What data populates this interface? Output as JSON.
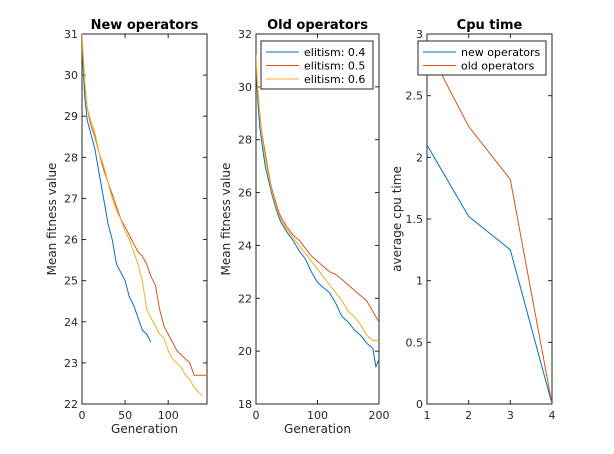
{
  "chart_data": [
    {
      "type": "line",
      "title": "New operators",
      "xlabel": "Generation",
      "ylabel": "Mean fitness value",
      "xlim": [
        0,
        145
      ],
      "ylim": [
        22,
        31
      ],
      "xticks": [
        0,
        50,
        100
      ],
      "yticks": [
        22,
        23,
        24,
        25,
        26,
        27,
        28,
        29,
        30,
        31
      ],
      "legend": null,
      "series": [
        {
          "color": "#0072BD",
          "x": [
            0,
            3,
            6,
            10,
            15,
            20,
            25,
            30,
            35,
            40,
            45,
            50,
            55,
            60,
            65,
            70,
            75,
            80
          ],
          "y": [
            30.8,
            29.5,
            28.9,
            28.6,
            28.2,
            27.6,
            27.0,
            26.4,
            26.0,
            25.4,
            25.2,
            25.0,
            24.6,
            24.4,
            24.1,
            23.8,
            23.7,
            23.5
          ]
        },
        {
          "color": "#D95319",
          "x": [
            0,
            3,
            6,
            10,
            15,
            20,
            25,
            30,
            35,
            40,
            45,
            50,
            55,
            60,
            65,
            70,
            75,
            80,
            85,
            90,
            95,
            100,
            105,
            110,
            115,
            120,
            125,
            130,
            135,
            140,
            145
          ],
          "y": [
            30.9,
            29.8,
            29.2,
            28.8,
            28.5,
            28.1,
            27.7,
            27.4,
            27.1,
            26.8,
            26.5,
            26.3,
            26.1,
            25.9,
            25.7,
            25.6,
            25.4,
            25.1,
            24.9,
            24.3,
            23.9,
            23.7,
            23.5,
            23.3,
            23.2,
            23.1,
            23.0,
            22.7,
            22.7,
            22.7,
            22.7
          ]
        },
        {
          "color": "#EDB120",
          "x": [
            0,
            3,
            6,
            10,
            15,
            20,
            25,
            30,
            35,
            40,
            45,
            50,
            55,
            60,
            65,
            70,
            75,
            80,
            85,
            90,
            95,
            100,
            105,
            110,
            115,
            120,
            125,
            130,
            135,
            140
          ],
          "y": [
            31.0,
            29.9,
            29.2,
            28.9,
            28.6,
            28.1,
            27.8,
            27.4,
            27.0,
            26.7,
            26.5,
            26.2,
            26.0,
            25.7,
            25.4,
            25.0,
            24.3,
            24.1,
            23.9,
            23.7,
            23.6,
            23.3,
            23.1,
            23.0,
            22.9,
            22.7,
            22.6,
            22.4,
            22.3,
            22.2
          ]
        }
      ]
    },
    {
      "type": "line",
      "title": "Old operators",
      "xlabel": "Generation",
      "ylabel": "Mean fitness value",
      "xlim": [
        0,
        200
      ],
      "ylim": [
        18,
        32
      ],
      "xticks": [
        0,
        100,
        200
      ],
      "yticks": [
        18,
        20,
        22,
        24,
        26,
        28,
        30,
        32
      ],
      "legend": "top-right",
      "series": [
        {
          "name": "elitism: 0.4",
          "color": "#0072BD",
          "x": [
            0,
            3,
            6,
            10,
            15,
            20,
            25,
            30,
            35,
            40,
            45,
            50,
            60,
            70,
            80,
            90,
            100,
            110,
            120,
            130,
            140,
            150,
            160,
            170,
            180,
            190,
            195,
            200
          ],
          "y": [
            30.8,
            29.5,
            28.5,
            27.8,
            27.0,
            26.5,
            26.0,
            25.6,
            25.2,
            24.9,
            24.7,
            24.5,
            24.2,
            23.8,
            23.5,
            23.0,
            22.6,
            22.4,
            22.2,
            21.8,
            21.3,
            21.1,
            20.8,
            20.6,
            20.3,
            20.1,
            19.4,
            19.7
          ]
        },
        {
          "name": "elitism: 0.5",
          "color": "#D95319",
          "x": [
            0,
            3,
            6,
            10,
            15,
            20,
            25,
            30,
            35,
            40,
            45,
            50,
            60,
            70,
            80,
            90,
            100,
            110,
            120,
            130,
            140,
            150,
            160,
            170,
            180,
            190,
            200
          ],
          "y": [
            31.0,
            29.8,
            29.0,
            28.2,
            27.5,
            26.8,
            26.2,
            25.8,
            25.4,
            25.1,
            24.9,
            24.7,
            24.4,
            24.2,
            23.9,
            23.6,
            23.4,
            23.2,
            23.0,
            22.9,
            22.7,
            22.5,
            22.3,
            22.1,
            21.9,
            21.5,
            21.1
          ]
        },
        {
          "name": "elitism: 0.6",
          "color": "#EDB120",
          "x": [
            0,
            3,
            6,
            10,
            15,
            20,
            25,
            30,
            35,
            40,
            45,
            50,
            60,
            70,
            80,
            90,
            100,
            110,
            120,
            130,
            140,
            150,
            160,
            170,
            180,
            190,
            200
          ],
          "y": [
            31.2,
            29.9,
            29.0,
            28.1,
            27.3,
            26.7,
            26.1,
            25.7,
            25.3,
            25.0,
            24.8,
            24.6,
            24.3,
            24.0,
            23.7,
            23.4,
            23.1,
            22.8,
            22.5,
            22.2,
            21.9,
            21.5,
            21.3,
            21.0,
            20.6,
            20.4,
            20.4
          ]
        }
      ]
    },
    {
      "type": "line",
      "title": "Cpu time",
      "xlabel": "",
      "ylabel": "average cpu time",
      "xlim": [
        1,
        4
      ],
      "ylim": [
        0,
        3
      ],
      "xticks": [
        1,
        2,
        3,
        4
      ],
      "yticks": [
        0,
        0.5,
        1,
        1.5,
        2,
        2.5,
        3
      ],
      "legend": "top-right",
      "series": [
        {
          "name": "new operators",
          "color": "#0072BD",
          "x": [
            1,
            2,
            3,
            4
          ],
          "y": [
            2.1,
            1.52,
            1.25,
            0.0
          ]
        },
        {
          "name": "old operators",
          "color": "#D95319",
          "x": [
            1,
            2,
            3,
            4
          ],
          "y": [
            2.9,
            2.25,
            1.82,
            0.0
          ]
        }
      ]
    }
  ]
}
